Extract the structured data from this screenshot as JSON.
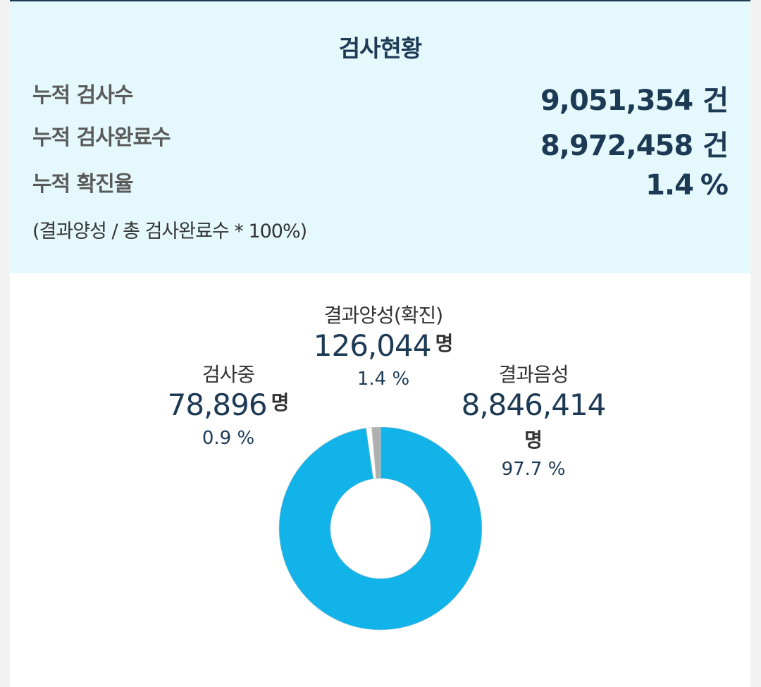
{
  "summary": {
    "title": "검사현황",
    "rows": [
      {
        "label": "누적 검사수",
        "value": "9,051,354",
        "unit": "건"
      },
      {
        "label": "누적 검사완료수",
        "value": "8,972,458",
        "unit": "건"
      },
      {
        "label": "누적 확진율",
        "value": "1.4",
        "unit": "%"
      }
    ],
    "note": "(결과양성 / 총 검사완료수 * 100%)"
  },
  "chart_data": {
    "type": "pie",
    "categories": [
      "결과음성",
      "검사중",
      "결과양성(확진)"
    ],
    "values": [
      8846414,
      78896,
      126044
    ],
    "percents": [
      97.7,
      0.9,
      1.4
    ],
    "colors": [
      "#12b3e8",
      "#ffffff",
      "#b0b0b0"
    ],
    "count_labels": [
      "8,846,414",
      "78,896",
      "126,044"
    ],
    "pct_labels": [
      "97.7 %",
      "0.9 %",
      "1.4 %"
    ],
    "unit": "명",
    "donut": true
  }
}
